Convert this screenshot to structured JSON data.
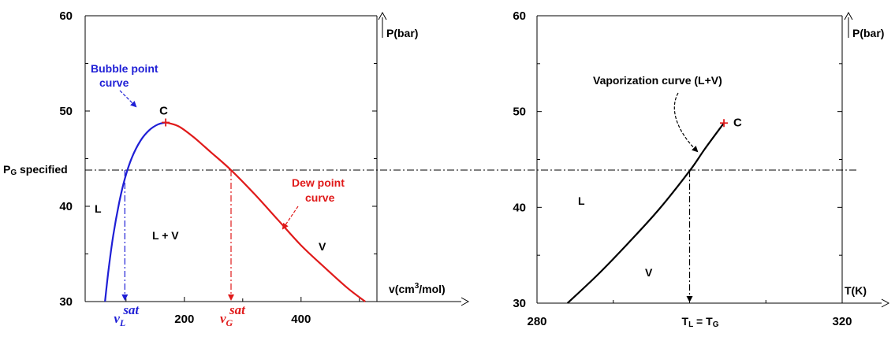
{
  "colors": {
    "bubble": "#1f1fd6",
    "dew": "#e01a1a",
    "vap": "#000000",
    "frame": "#000000"
  },
  "chart_data": [
    {
      "type": "line",
      "xlabel_main": "v(cm",
      "xlabel_sup": "3",
      "xlabel_tail": "/mol)",
      "ylabel": "P(bar)",
      "xlim": [
        30,
        530
      ],
      "ylim": [
        30,
        60
      ],
      "x_ticks": [
        200,
        400
      ],
      "y_ticks": [
        30,
        40,
        50,
        60
      ],
      "grid": false,
      "pressure_line": {
        "y": 43.8,
        "label_main": "P",
        "label_sub": "G",
        "label_tail": " specified"
      },
      "critical_point": {
        "x": 168,
        "y": 48.8,
        "label": "C"
      },
      "series": [
        {
          "name": "Bubble point curve",
          "x": [
            64,
            70,
            78,
            88,
            98,
            110,
            125,
            140,
            155,
            168
          ],
          "y": [
            30,
            33.3,
            36.9,
            40.3,
            42.9,
            45.1,
            46.9,
            48.0,
            48.6,
            48.8
          ]
        },
        {
          "name": "Dew point curve",
          "x": [
            168,
            190,
            215,
            245,
            280,
            320,
            360,
            400,
            440,
            480,
            510
          ],
          "y": [
            48.8,
            48.4,
            47.3,
            45.7,
            43.8,
            41.3,
            38.6,
            35.9,
            33.6,
            31.4,
            30.0
          ]
        }
      ],
      "labels": {
        "bubble_line1": "Bubble point",
        "bubble_line2": "curve",
        "dew_line1": "Dew point",
        "dew_line2": "curve",
        "region_L": "L",
        "region_LV": "L + V",
        "region_V": "V",
        "vL_main": "v",
        "vL_sub": "L",
        "vG_main": "v",
        "vG_sub": "G",
        "sat": "sat"
      },
      "vL": 98,
      "vG": 280
    },
    {
      "type": "line",
      "xlabel": "T(K)",
      "ylabel": "P(bar)",
      "xlim": [
        280,
        320
      ],
      "ylim": [
        30,
        60
      ],
      "x_ticks": [
        280,
        320
      ],
      "y_ticks": [
        30,
        40,
        50,
        60
      ],
      "grid": false,
      "pressure_line": {
        "y": 43.8
      },
      "critical_point": {
        "x": 304.5,
        "y": 48.8,
        "label": "C"
      },
      "series": [
        {
          "name": "Vaporization curve (L+V)",
          "x": [
            284,
            288,
            292,
            296,
            300,
            302,
            304.5
          ],
          "y": [
            30,
            33.0,
            36.3,
            39.8,
            43.8,
            46.1,
            48.8
          ]
        }
      ],
      "labels": {
        "vap_curve": "Vaporization curve (L+V)",
        "region_L": "L",
        "region_V": "V",
        "tl_main": "T",
        "tl_sub": "L",
        "tl_eq": " = T",
        "tg_sub": "G"
      },
      "T_eq": 300
    }
  ]
}
